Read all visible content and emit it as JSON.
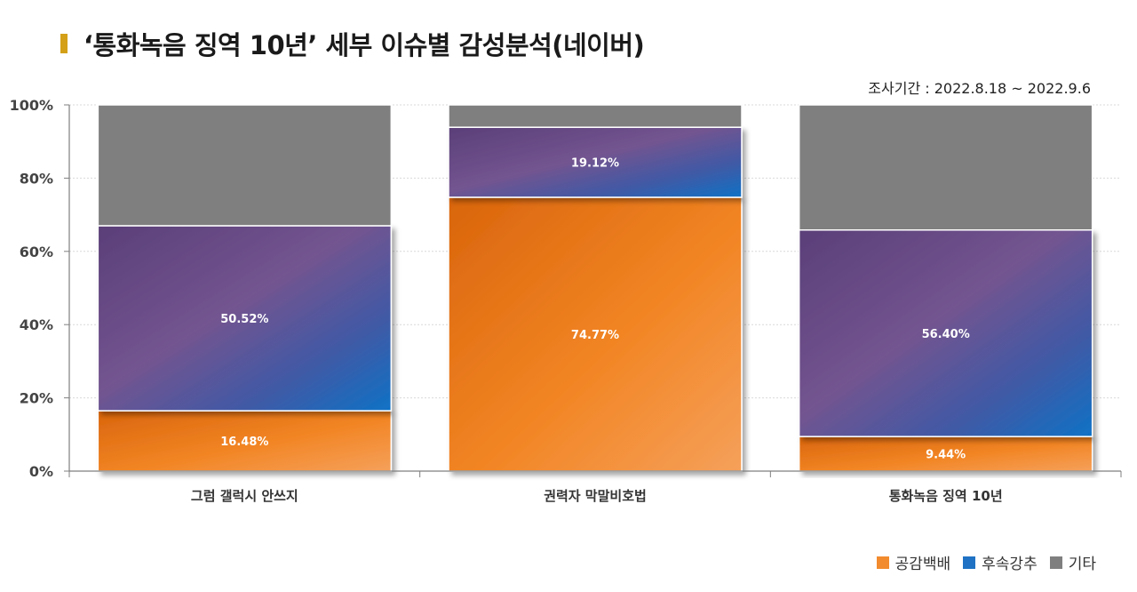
{
  "header": {
    "title": "‘통화녹음 징역 10년’ 세부 이슈별 감성분석(네이버)",
    "period": "조사기간 : 2022.8.18 ~ 2022.9.6"
  },
  "colors": {
    "title_marker": "#d4a017",
    "positive": "#f28b2d",
    "negative": "#1f72c4",
    "other": "#7f7f7f"
  },
  "chart_data": {
    "type": "bar",
    "stacked": true,
    "categories": [
      "그럼 갤럭시 안쓰지",
      "권력자 막말비호법",
      "통화녹음 징역 10년"
    ],
    "series": [
      {
        "name": "공감백배",
        "values": [
          16.48,
          74.77,
          9.44
        ],
        "labels": [
          "16.48%",
          "74.77%",
          "9.44%"
        ]
      },
      {
        "name": "후속강추",
        "values": [
          50.52,
          19.12,
          56.4
        ],
        "labels": [
          "50.52%",
          "19.12%",
          "56.40%"
        ]
      },
      {
        "name": "기타",
        "values": [
          33.0,
          6.11,
          34.16
        ]
      }
    ],
    "ylim": [
      0,
      100
    ],
    "yticks": [
      "0%",
      "20%",
      "40%",
      "60%",
      "80%",
      "100%"
    ],
    "grid": true,
    "legend": "bottom-right"
  }
}
